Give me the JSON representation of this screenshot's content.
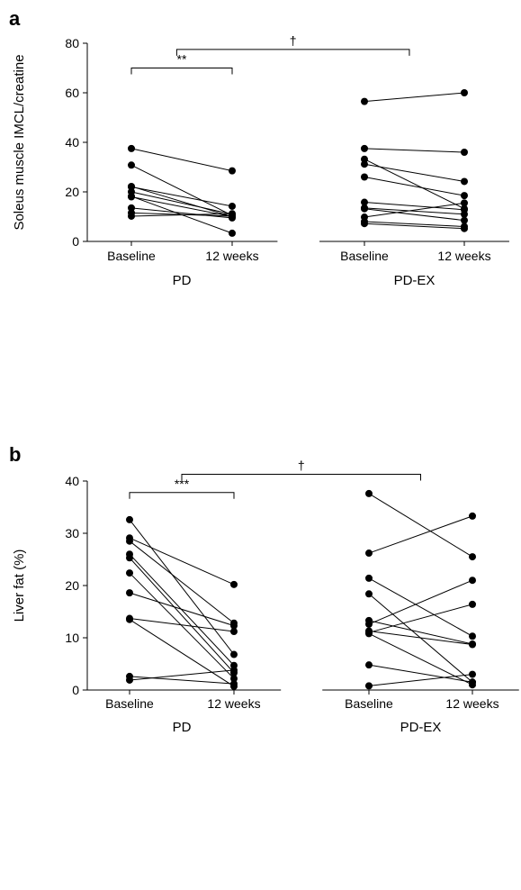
{
  "chart_data": [
    {
      "type": "scatter",
      "panel_label": "a",
      "ylabel": "Soleus muscle IMCL/creatine",
      "xlabel": "",
      "ylim": [
        0,
        80
      ],
      "yticks": [
        0,
        20,
        40,
        60,
        80
      ],
      "grid": false,
      "groups": [
        {
          "name": "PD",
          "categories": [
            "Baseline",
            "12 weeks"
          ],
          "pairs": [
            [
              37.5,
              28.5
            ],
            [
              30.8,
              10.5
            ],
            [
              22.2,
              10.0
            ],
            [
              22.0,
              14.2
            ],
            [
              20.0,
              11.0
            ],
            [
              18.0,
              10.0
            ],
            [
              13.5,
              9.5
            ],
            [
              11.5,
              10.2
            ],
            [
              10.2,
              11.2
            ],
            [
              18.2,
              3.3
            ]
          ]
        },
        {
          "name": "PD-EX",
          "categories": [
            "Baseline",
            "12 weeks"
          ],
          "pairs": [
            [
              56.5,
              60.0
            ],
            [
              37.5,
              36.0
            ],
            [
              33.2,
              13.2
            ],
            [
              31.2,
              24.2
            ],
            [
              26.0,
              18.5
            ],
            [
              15.8,
              12.8
            ],
            [
              13.5,
              11.0
            ],
            [
              13.2,
              8.5
            ],
            [
              9.8,
              15.5
            ],
            [
              8.0,
              6.0
            ],
            [
              7.2,
              5.2
            ]
          ]
        }
      ],
      "annotations": [
        {
          "label": "**",
          "from": [
            0,
            0
          ],
          "to": [
            0,
            1
          ],
          "y": 70
        },
        {
          "label": "†",
          "from": [
            0,
            0.45
          ],
          "to": [
            1,
            0.45
          ],
          "y": 77.5
        }
      ]
    },
    {
      "type": "scatter",
      "panel_label": "b",
      "ylabel": "Liver fat (%)",
      "xlabel": "",
      "ylim": [
        0,
        40
      ],
      "yticks": [
        0,
        10,
        20,
        30,
        40
      ],
      "grid": false,
      "groups": [
        {
          "name": "PD",
          "categories": [
            "Baseline",
            "12 weeks"
          ],
          "pairs": [
            [
              32.6,
              6.8
            ],
            [
              29.1,
              20.2
            ],
            [
              28.5,
              12.8
            ],
            [
              26.0,
              4.7
            ],
            [
              25.3,
              3.3
            ],
            [
              22.4,
              2.2
            ],
            [
              18.6,
              12.3
            ],
            [
              13.7,
              11.2
            ],
            [
              13.5,
              0.7
            ],
            [
              2.6,
              1.2
            ],
            [
              1.9,
              3.8
            ]
          ]
        },
        {
          "name": "PD-EX",
          "categories": [
            "Baseline",
            "12 weeks"
          ],
          "pairs": [
            [
              37.6,
              25.5
            ],
            [
              26.2,
              33.3
            ],
            [
              21.4,
              10.3
            ],
            [
              18.4,
              1.5
            ],
            [
              13.3,
              8.8
            ],
            [
              12.6,
              21.0
            ],
            [
              11.3,
              8.7
            ],
            [
              11.0,
              16.4
            ],
            [
              10.8,
              1.0
            ],
            [
              4.8,
              1.5
            ],
            [
              0.8,
              3.0
            ]
          ]
        }
      ],
      "annotations": [
        {
          "label": "***",
          "from": [
            0,
            0
          ],
          "to": [
            0,
            1
          ],
          "y": 37.8
        },
        {
          "label": "†",
          "from": [
            0,
            0.5
          ],
          "to": [
            1,
            0.5
          ],
          "y": 41.3
        }
      ]
    }
  ]
}
